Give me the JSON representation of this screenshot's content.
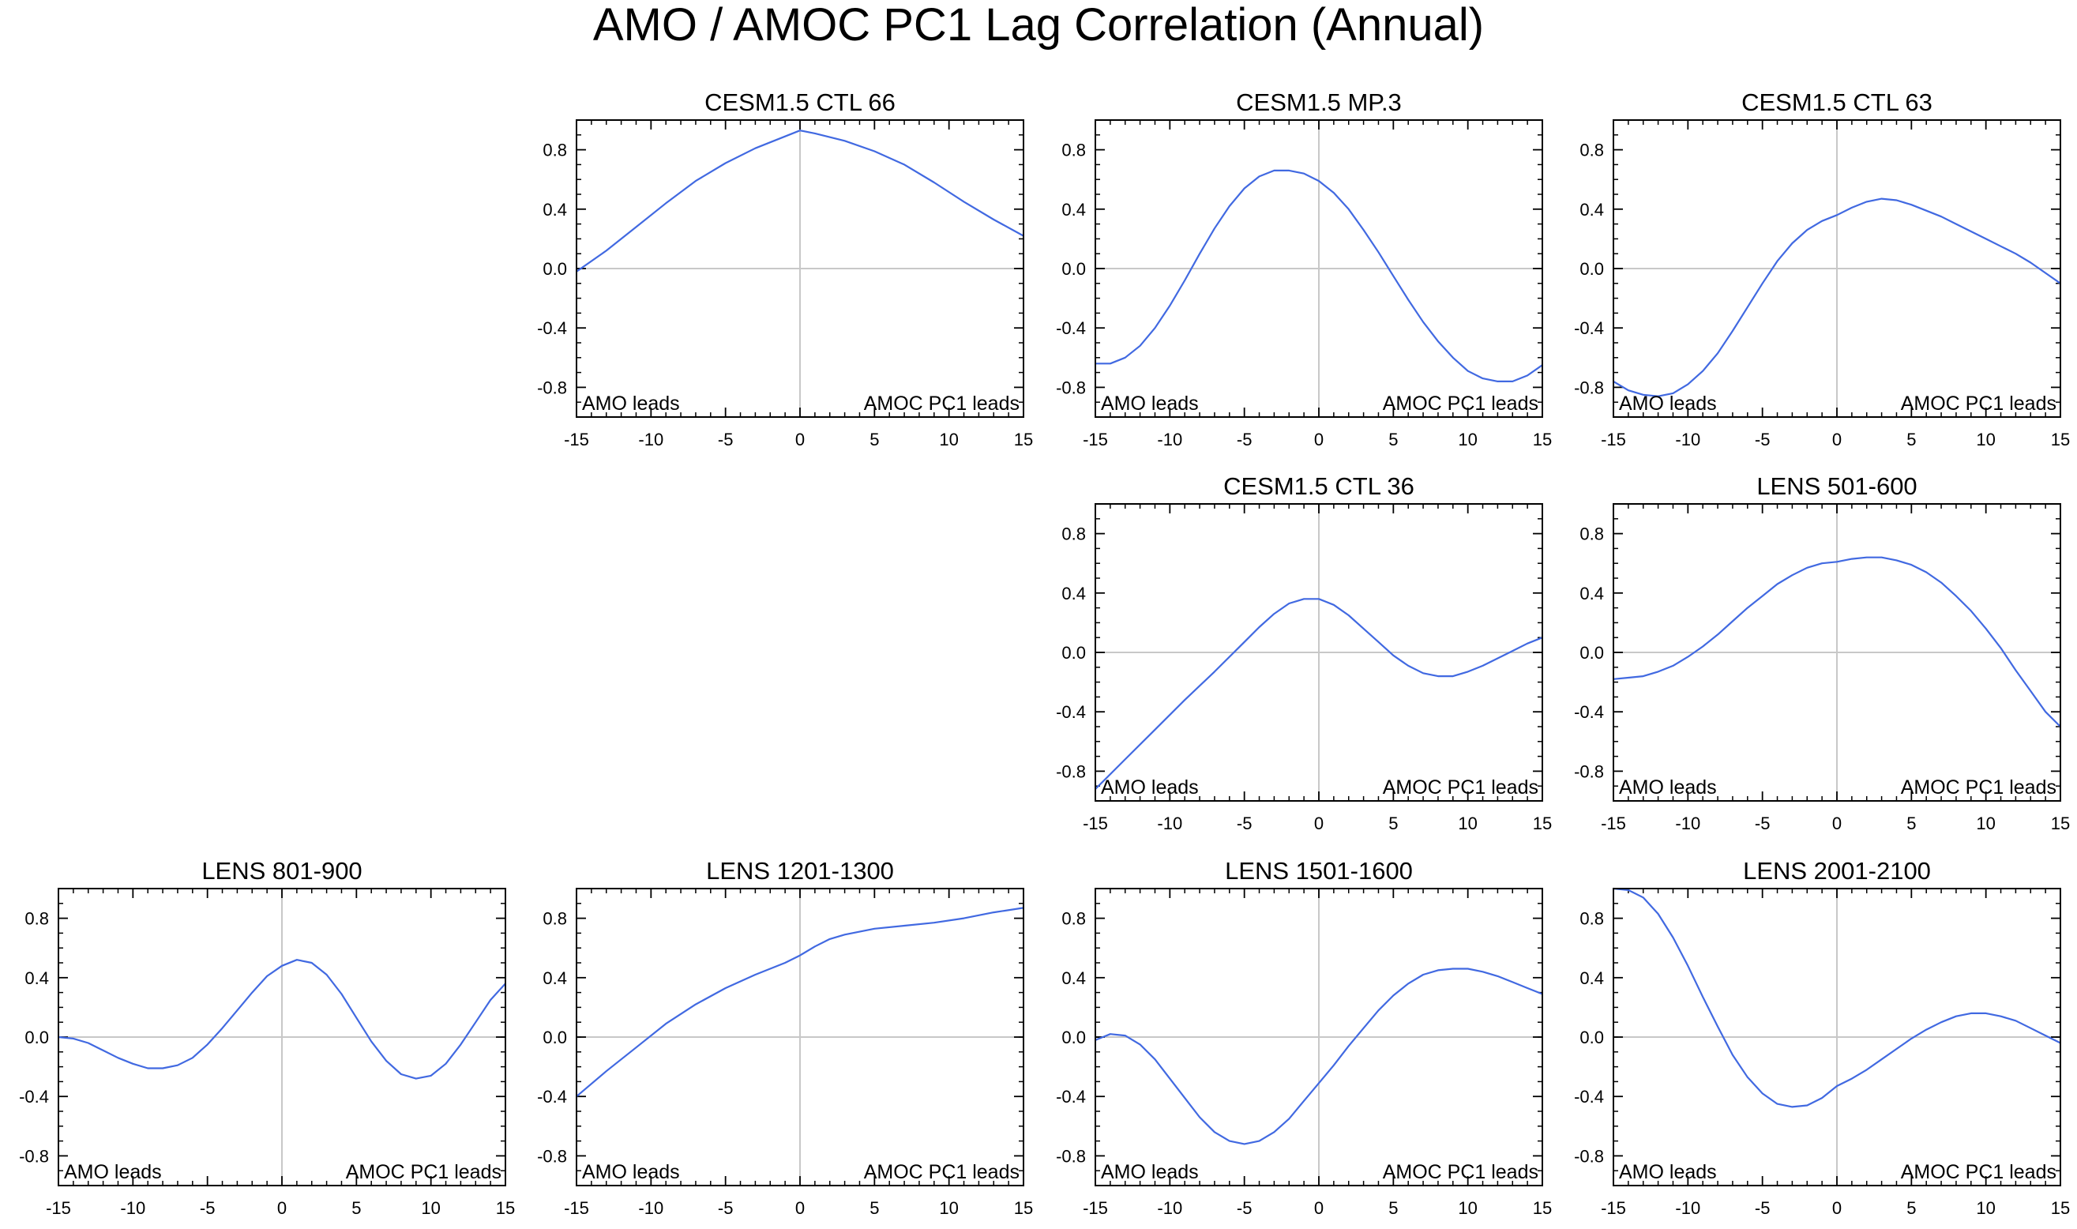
{
  "figure_title": "AMO / AMOC PC1 Lag Correlation (Annual)",
  "chart_data": [
    {
      "type": "line",
      "title": "CESM1.5 CTL 66",
      "xlabel": "",
      "ylabel": "",
      "xlim": [
        -15,
        15
      ],
      "ylim": [
        -1,
        1
      ],
      "xticks": [
        -15,
        -10,
        -5,
        0,
        5,
        10,
        15
      ],
      "yticks": [
        -0.8,
        -0.4,
        0.0,
        0.4,
        0.8
      ],
      "xtick_labels": [
        "-15",
        "-10",
        "-5",
        "0",
        "5",
        "10",
        "15"
      ],
      "ytick_labels": [
        "-0.8",
        "-0.4",
        "0.0",
        "0.4",
        "0.8"
      ],
      "left_annotation": "AMO leads",
      "right_annotation": "AMOC PC1 leads",
      "line_color": "#4169e1",
      "x": [
        -15,
        -13,
        -11,
        -9,
        -7,
        -5,
        -3,
        -1,
        0,
        1,
        3,
        5,
        7,
        9,
        11,
        13,
        15
      ],
      "y": [
        -0.02,
        0.12,
        0.28,
        0.44,
        0.59,
        0.71,
        0.81,
        0.89,
        0.93,
        0.91,
        0.86,
        0.79,
        0.7,
        0.58,
        0.45,
        0.33,
        0.22
      ]
    },
    {
      "type": "line",
      "title": "CESM1.5 MP.3",
      "xlabel": "",
      "ylabel": "",
      "xlim": [
        -15,
        15
      ],
      "ylim": [
        -1,
        1
      ],
      "xticks": [
        -15,
        -10,
        -5,
        0,
        5,
        10,
        15
      ],
      "yticks": [
        -0.8,
        -0.4,
        0.0,
        0.4,
        0.8
      ],
      "xtick_labels": [
        "-15",
        "-10",
        "-5",
        "0",
        "5",
        "10",
        "15"
      ],
      "ytick_labels": [
        "-0.8",
        "-0.4",
        "0.0",
        "0.4",
        "0.8"
      ],
      "left_annotation": "AMO leads",
      "right_annotation": "AMOC PC1 leads",
      "line_color": "#4169e1",
      "x": [
        -15,
        -14,
        -13,
        -12,
        -11,
        -10,
        -9,
        -8,
        -7,
        -6,
        -5,
        -4,
        -3,
        -2,
        -1,
        0,
        1,
        2,
        3,
        4,
        5,
        6,
        7,
        8,
        9,
        10,
        11,
        12,
        13,
        14,
        15
      ],
      "y": [
        -0.64,
        -0.64,
        -0.6,
        -0.52,
        -0.4,
        -0.25,
        -0.08,
        0.1,
        0.27,
        0.42,
        0.54,
        0.62,
        0.66,
        0.66,
        0.64,
        0.59,
        0.51,
        0.4,
        0.26,
        0.11,
        -0.05,
        -0.21,
        -0.36,
        -0.49,
        -0.6,
        -0.69,
        -0.74,
        -0.76,
        -0.76,
        -0.72,
        -0.65
      ]
    },
    {
      "type": "line",
      "title": "CESM1.5 CTL 63",
      "xlabel": "",
      "ylabel": "",
      "xlim": [
        -15,
        15
      ],
      "ylim": [
        -1,
        1
      ],
      "xticks": [
        -15,
        -10,
        -5,
        0,
        5,
        10,
        15
      ],
      "yticks": [
        -0.8,
        -0.4,
        0.0,
        0.4,
        0.8
      ],
      "xtick_labels": [
        "-15",
        "-10",
        "-5",
        "0",
        "5",
        "10",
        "15"
      ],
      "ytick_labels": [
        "-0.8",
        "-0.4",
        "0.0",
        "0.4",
        "0.8"
      ],
      "left_annotation": "AMO leads",
      "right_annotation": "AMOC PC1 leads",
      "line_color": "#4169e1",
      "x": [
        -15,
        -14,
        -13,
        -12,
        -11,
        -10,
        -9,
        -8,
        -7,
        -6,
        -5,
        -4,
        -3,
        -2,
        -1,
        0,
        1,
        2,
        3,
        4,
        5,
        6,
        7,
        8,
        9,
        10,
        11,
        12,
        13,
        14,
        15
      ],
      "y": [
        -0.76,
        -0.82,
        -0.85,
        -0.86,
        -0.84,
        -0.78,
        -0.69,
        -0.57,
        -0.42,
        -0.26,
        -0.1,
        0.05,
        0.17,
        0.26,
        0.32,
        0.36,
        0.41,
        0.45,
        0.47,
        0.46,
        0.43,
        0.39,
        0.35,
        0.3,
        0.25,
        0.2,
        0.15,
        0.1,
        0.04,
        -0.03,
        -0.1
      ]
    },
    {
      "type": "line",
      "title": "CESM1.5 CTL 36",
      "xlabel": "",
      "ylabel": "",
      "xlim": [
        -15,
        15
      ],
      "ylim": [
        -1,
        1
      ],
      "xticks": [
        -15,
        -10,
        -5,
        0,
        5,
        10,
        15
      ],
      "yticks": [
        -0.8,
        -0.4,
        0.0,
        0.4,
        0.8
      ],
      "xtick_labels": [
        "-15",
        "-10",
        "-5",
        "0",
        "5",
        "10",
        "15"
      ],
      "ytick_labels": [
        "-0.8",
        "-0.4",
        "0.0",
        "0.4",
        "0.8"
      ],
      "left_annotation": "AMO leads",
      "right_annotation": "AMOC PC1 leads",
      "line_color": "#4169e1",
      "x": [
        -15,
        -13,
        -11,
        -9,
        -7,
        -5,
        -4,
        -3,
        -2,
        -1,
        0,
        1,
        2,
        3,
        4,
        5,
        6,
        7,
        8,
        9,
        10,
        11,
        12,
        13,
        14,
        15
      ],
      "y": [
        -0.92,
        -0.72,
        -0.52,
        -0.32,
        -0.13,
        0.07,
        0.17,
        0.26,
        0.33,
        0.36,
        0.36,
        0.32,
        0.25,
        0.16,
        0.07,
        -0.02,
        -0.09,
        -0.14,
        -0.16,
        -0.16,
        -0.13,
        -0.09,
        -0.04,
        0.01,
        0.06,
        0.1
      ]
    },
    {
      "type": "line",
      "title": "LENS 501-600",
      "xlabel": "",
      "ylabel": "",
      "xlim": [
        -15,
        15
      ],
      "ylim": [
        -1,
        1
      ],
      "xticks": [
        -15,
        -10,
        -5,
        0,
        5,
        10,
        15
      ],
      "yticks": [
        -0.8,
        -0.4,
        0.0,
        0.4,
        0.8
      ],
      "xtick_labels": [
        "-15",
        "-10",
        "-5",
        "0",
        "5",
        "10",
        "15"
      ],
      "ytick_labels": [
        "-0.8",
        "-0.4",
        "0.0",
        "0.4",
        "0.8"
      ],
      "left_annotation": "AMO leads",
      "right_annotation": "AMOC PC1 leads",
      "line_color": "#4169e1",
      "x": [
        -15,
        -14,
        -13,
        -12,
        -11,
        -10,
        -9,
        -8,
        -7,
        -6,
        -5,
        -4,
        -3,
        -2,
        -1,
        0,
        1,
        2,
        3,
        4,
        5,
        6,
        7,
        8,
        9,
        10,
        11,
        12,
        13,
        14,
        15
      ],
      "y": [
        -0.18,
        -0.17,
        -0.16,
        -0.13,
        -0.09,
        -0.03,
        0.04,
        0.12,
        0.21,
        0.3,
        0.38,
        0.46,
        0.52,
        0.57,
        0.6,
        0.61,
        0.63,
        0.64,
        0.64,
        0.62,
        0.59,
        0.54,
        0.47,
        0.38,
        0.28,
        0.16,
        0.03,
        -0.12,
        -0.26,
        -0.4,
        -0.5
      ]
    },
    {
      "type": "line",
      "title": "LENS 801-900",
      "xlabel": "",
      "ylabel": "",
      "xlim": [
        -15,
        15
      ],
      "ylim": [
        -1,
        1
      ],
      "xticks": [
        -15,
        -10,
        -5,
        0,
        5,
        10,
        15
      ],
      "yticks": [
        -0.8,
        -0.4,
        0.0,
        0.4,
        0.8
      ],
      "xtick_labels": [
        "-15",
        "-10",
        "-5",
        "0",
        "5",
        "10",
        "15"
      ],
      "ytick_labels": [
        "-0.8",
        "-0.4",
        "0.0",
        "0.4",
        "0.8"
      ],
      "left_annotation": "AMO leads",
      "right_annotation": "AMOC PC1 leads",
      "line_color": "#4169e1",
      "x": [
        -15,
        -14,
        -13,
        -12,
        -11,
        -10,
        -9,
        -8,
        -7,
        -6,
        -5,
        -4,
        -3,
        -2,
        -1,
        0,
        1,
        2,
        3,
        4,
        5,
        6,
        7,
        8,
        9,
        10,
        11,
        12,
        13,
        14,
        15
      ],
      "y": [
        0.0,
        -0.01,
        -0.04,
        -0.09,
        -0.14,
        -0.18,
        -0.21,
        -0.21,
        -0.19,
        -0.14,
        -0.05,
        0.06,
        0.18,
        0.3,
        0.41,
        0.48,
        0.52,
        0.5,
        0.42,
        0.29,
        0.13,
        -0.03,
        -0.16,
        -0.25,
        -0.28,
        -0.26,
        -0.18,
        -0.05,
        0.1,
        0.25,
        0.36
      ]
    },
    {
      "type": "line",
      "title": "LENS 1201-1300",
      "xlabel": "",
      "ylabel": "",
      "xlim": [
        -15,
        15
      ],
      "ylim": [
        -1,
        1
      ],
      "xticks": [
        -15,
        -10,
        -5,
        0,
        5,
        10,
        15
      ],
      "yticks": [
        -0.8,
        -0.4,
        0.0,
        0.4,
        0.8
      ],
      "xtick_labels": [
        "-15",
        "-10",
        "-5",
        "0",
        "5",
        "10",
        "15"
      ],
      "ytick_labels": [
        "-0.8",
        "-0.4",
        "0.0",
        "0.4",
        "0.8"
      ],
      "left_annotation": "AMO leads",
      "right_annotation": "AMOC PC1 leads",
      "line_color": "#4169e1",
      "x": [
        -15,
        -13,
        -11,
        -9,
        -7,
        -5,
        -3,
        -1,
        0,
        1,
        2,
        3,
        5,
        7,
        9,
        11,
        13,
        15
      ],
      "y": [
        -0.4,
        -0.23,
        -0.07,
        0.09,
        0.22,
        0.33,
        0.42,
        0.5,
        0.55,
        0.61,
        0.66,
        0.69,
        0.73,
        0.75,
        0.77,
        0.8,
        0.84,
        0.87
      ]
    },
    {
      "type": "line",
      "title": "LENS 1501-1600",
      "xlabel": "",
      "ylabel": "",
      "xlim": [
        -15,
        15
      ],
      "ylim": [
        -1,
        1
      ],
      "xticks": [
        -15,
        -10,
        -5,
        0,
        5,
        10,
        15
      ],
      "yticks": [
        -0.8,
        -0.4,
        0.0,
        0.4,
        0.8
      ],
      "xtick_labels": [
        "-15",
        "-10",
        "-5",
        "0",
        "5",
        "10",
        "15"
      ],
      "ytick_labels": [
        "-0.8",
        "-0.4",
        "0.0",
        "0.4",
        "0.8"
      ],
      "left_annotation": "AMO leads",
      "right_annotation": "AMOC PC1 leads",
      "line_color": "#4169e1",
      "x": [
        -15,
        -14,
        -13,
        -12,
        -11,
        -10,
        -9,
        -8,
        -7,
        -6,
        -5,
        -4,
        -3,
        -2,
        -1,
        0,
        1,
        2,
        3,
        4,
        5,
        6,
        7,
        8,
        9,
        10,
        11,
        12,
        13,
        14,
        15
      ],
      "y": [
        -0.02,
        0.02,
        0.01,
        -0.05,
        -0.15,
        -0.28,
        -0.41,
        -0.54,
        -0.64,
        -0.7,
        -0.72,
        -0.7,
        -0.64,
        -0.55,
        -0.43,
        -0.31,
        -0.19,
        -0.06,
        0.06,
        0.18,
        0.28,
        0.36,
        0.42,
        0.45,
        0.46,
        0.46,
        0.44,
        0.41,
        0.37,
        0.33,
        0.29
      ]
    },
    {
      "type": "line",
      "title": "LENS 2001-2100",
      "xlabel": "",
      "ylabel": "",
      "xlim": [
        -15,
        15
      ],
      "ylim": [
        -1,
        1
      ],
      "xticks": [
        -15,
        -10,
        -5,
        0,
        5,
        10,
        15
      ],
      "yticks": [
        -0.8,
        -0.4,
        0.0,
        0.4,
        0.8
      ],
      "xtick_labels": [
        "-15",
        "-10",
        "-5",
        "0",
        "5",
        "10",
        "15"
      ],
      "ytick_labels": [
        "-0.8",
        "-0.4",
        "0.0",
        "0.4",
        "0.8"
      ],
      "left_annotation": "AMO leads",
      "right_annotation": "AMOC PC1 leads",
      "line_color": "#4169e1",
      "x": [
        -15,
        -14,
        -13,
        -12,
        -11,
        -10,
        -9,
        -8,
        -7,
        -6,
        -5,
        -4,
        -3,
        -2,
        -1,
        0,
        1,
        2,
        3,
        4,
        5,
        6,
        7,
        8,
        9,
        10,
        11,
        12,
        13,
        14,
        15
      ],
      "y": [
        1.0,
        0.99,
        0.94,
        0.83,
        0.67,
        0.48,
        0.27,
        0.07,
        -0.12,
        -0.27,
        -0.38,
        -0.45,
        -0.47,
        -0.46,
        -0.41,
        -0.33,
        -0.28,
        -0.22,
        -0.15,
        -0.08,
        -0.01,
        0.05,
        0.1,
        0.14,
        0.16,
        0.16,
        0.14,
        0.11,
        0.06,
        0.01,
        -0.04
      ]
    }
  ]
}
